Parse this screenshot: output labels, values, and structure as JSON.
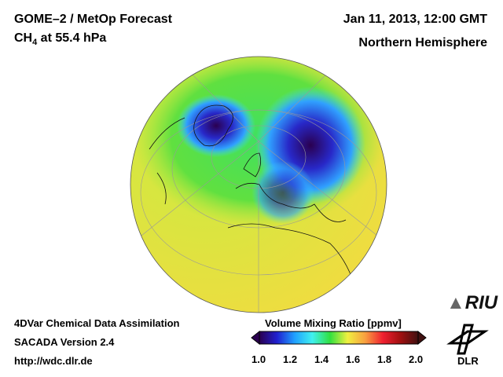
{
  "header": {
    "title": "GOME–2 / MetOp Forecast",
    "species": "CH",
    "species_sub": "4",
    "level": " at 55.4 hPa",
    "datetime": "Jan 11, 2013, 12:00 GMT",
    "region": "Northern Hemisphere"
  },
  "footer": {
    "line1": "4DVar Chemical Data Assimilation",
    "line2": "SACADA Version 2.4",
    "line3": "http://wdc.dlr.de"
  },
  "colorbar": {
    "title": "Volume Mixing Ratio [ppmv]",
    "min": 1.0,
    "max": 2.0,
    "ticks": [
      "1.0",
      "1.2",
      "1.4",
      "1.6",
      "1.8",
      "2.0"
    ],
    "colors": [
      "#2a0050",
      "#2020d0",
      "#20a0ff",
      "#40f0f0",
      "#30e040",
      "#f0f040",
      "#f8a040",
      "#f02030",
      "#a01010",
      "#401010"
    ]
  },
  "logos": {
    "riu": "RIU",
    "dlr": "DLR"
  }
}
